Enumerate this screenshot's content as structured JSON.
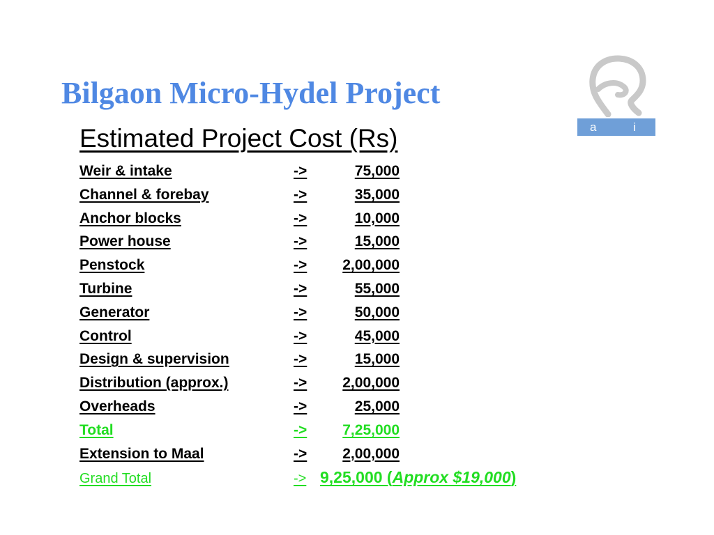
{
  "slide": {
    "title": "Bilgaon Micro-Hydel Project",
    "subtitle": "Estimated Project Cost (Rs)"
  },
  "logo": {
    "text": "a i d",
    "icon": "aid-logo-icon",
    "bar_color": "#6f9fd8"
  },
  "colors": {
    "title": "#4f88e3",
    "text": "#000000",
    "total_highlight": "#22dd22"
  },
  "costs": [
    {
      "item": "Weir & intake",
      "arrow": "->",
      "amount": "75,000"
    },
    {
      "item": "Channel & forebay",
      "arrow": "->",
      "amount": "35,000"
    },
    {
      "item": "Anchor blocks",
      "arrow": "->",
      "amount": "10,000"
    },
    {
      "item": "Power house",
      "arrow": "->",
      "amount": "15,000"
    },
    {
      "item": "Penstock",
      "arrow": "->",
      "amount": "2,00,000"
    },
    {
      "item": "Turbine",
      "arrow": "->",
      "amount": "55,000"
    },
    {
      "item": "Generator",
      "arrow": "->",
      "amount": "50,000"
    },
    {
      "item": "Control",
      "arrow": "->",
      "amount": "45,000"
    },
    {
      "item": "Design & supervision",
      "arrow": "->",
      "amount": "15,000"
    },
    {
      "item": "Distribution (approx.)",
      "arrow": "->",
      "amount": "2,00,000"
    },
    {
      "item": "Overheads",
      "arrow": "->",
      "amount": "25,000"
    },
    {
      "item": "Total",
      "arrow": "->",
      "amount": "7,25,000"
    },
    {
      "item": "Extension to Maal",
      "arrow": "->",
      "amount": "2,00,000"
    }
  ],
  "grand_total": {
    "label": "Grand Total",
    "arrow": "->",
    "amount": "9,25,000 (",
    "note": "Approx $19,000",
    "close": ")"
  }
}
